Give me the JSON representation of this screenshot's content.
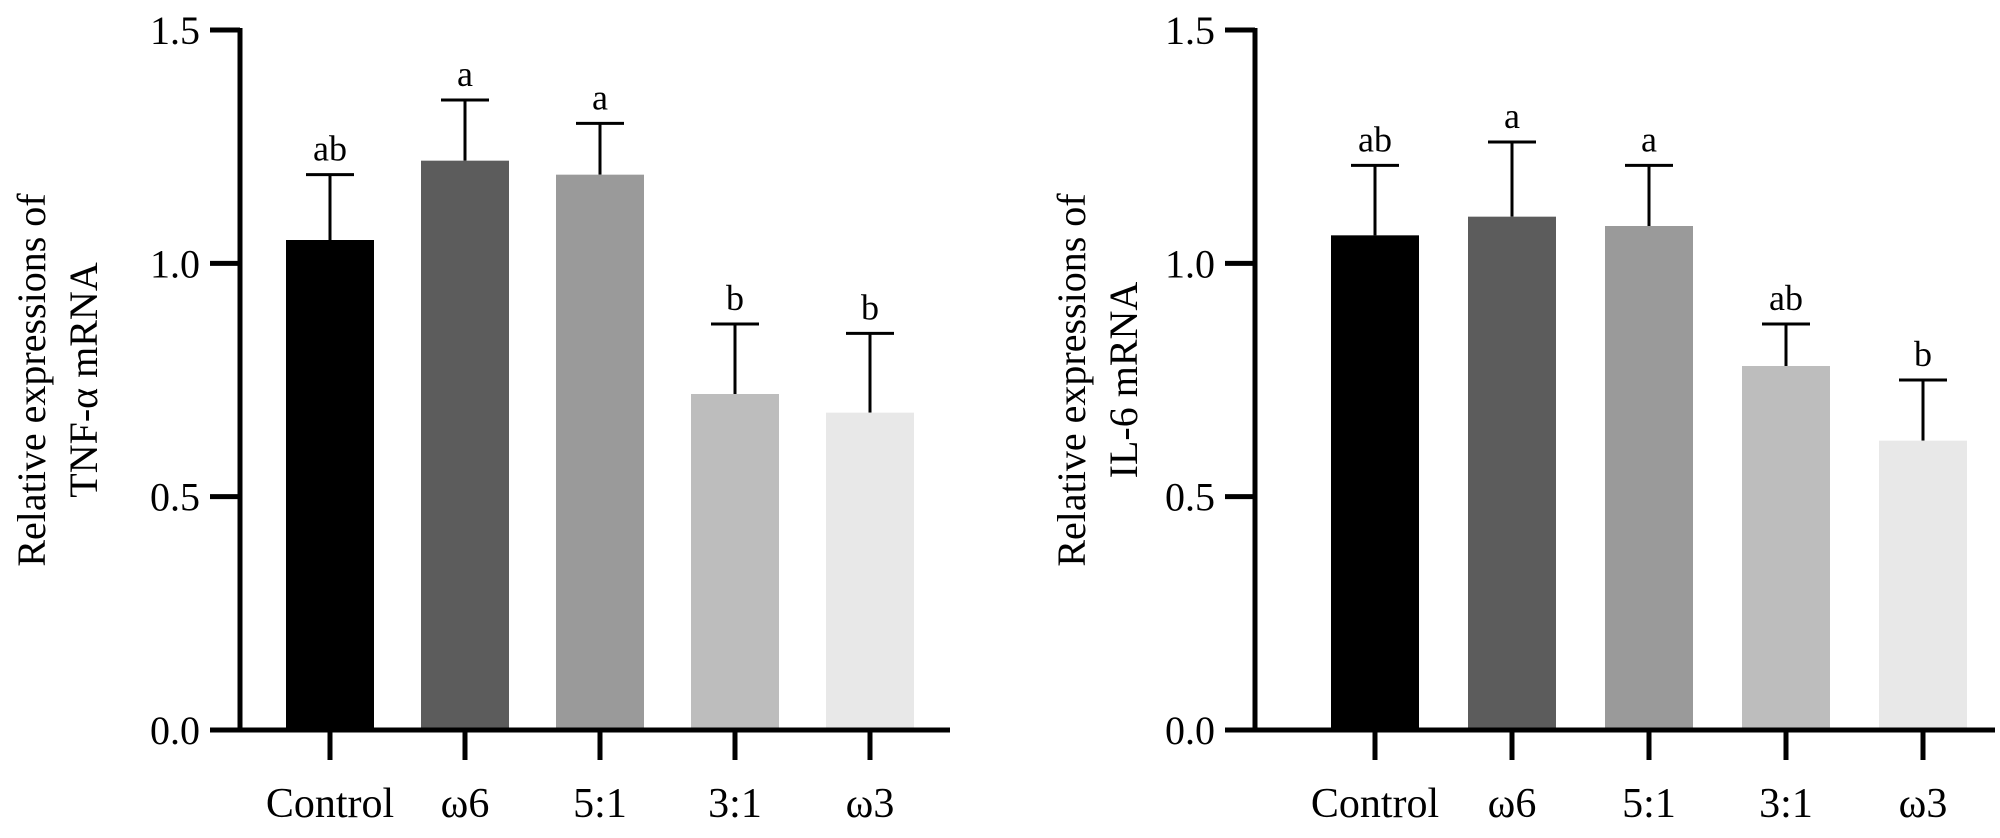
{
  "chart_data": [
    {
      "type": "bar",
      "ylabel_lines": [
        "Relative expressions of",
        "TNF-α mRNA"
      ],
      "xlabel": "",
      "categories": [
        "Control",
        "ω6",
        "5:1",
        "3:1",
        "ω3"
      ],
      "values": [
        1.05,
        1.22,
        1.19,
        0.72,
        0.68
      ],
      "errors": [
        0.14,
        0.13,
        0.11,
        0.15,
        0.17
      ],
      "significance": [
        "ab",
        "a",
        "a",
        "b",
        "b"
      ],
      "ylim": [
        0,
        1.5
      ],
      "yticks": [
        "0.0",
        "0.5",
        "1.0",
        "1.5"
      ],
      "bar_colors": [
        "#000000",
        "#5c5c5c",
        "#9a9a9a",
        "#bdbdbd",
        "#e8e8e8"
      ],
      "grid": false
    },
    {
      "type": "bar",
      "ylabel_lines": [
        "Relative expressions of",
        "IL-6 mRNA"
      ],
      "xlabel": "",
      "categories": [
        "Control",
        "ω6",
        "5:1",
        "3:1",
        "ω3"
      ],
      "values": [
        1.06,
        1.1,
        1.08,
        0.78,
        0.62
      ],
      "errors": [
        0.15,
        0.16,
        0.13,
        0.09,
        0.13
      ],
      "significance": [
        "ab",
        "a",
        "a",
        "ab",
        "b"
      ],
      "ylim": [
        0,
        1.5
      ],
      "yticks": [
        "0.0",
        "0.5",
        "1.0",
        "1.5"
      ],
      "bar_colors": [
        "#000000",
        "#5c5c5c",
        "#9a9a9a",
        "#bdbdbd",
        "#e8e8e8"
      ],
      "grid": false
    }
  ]
}
